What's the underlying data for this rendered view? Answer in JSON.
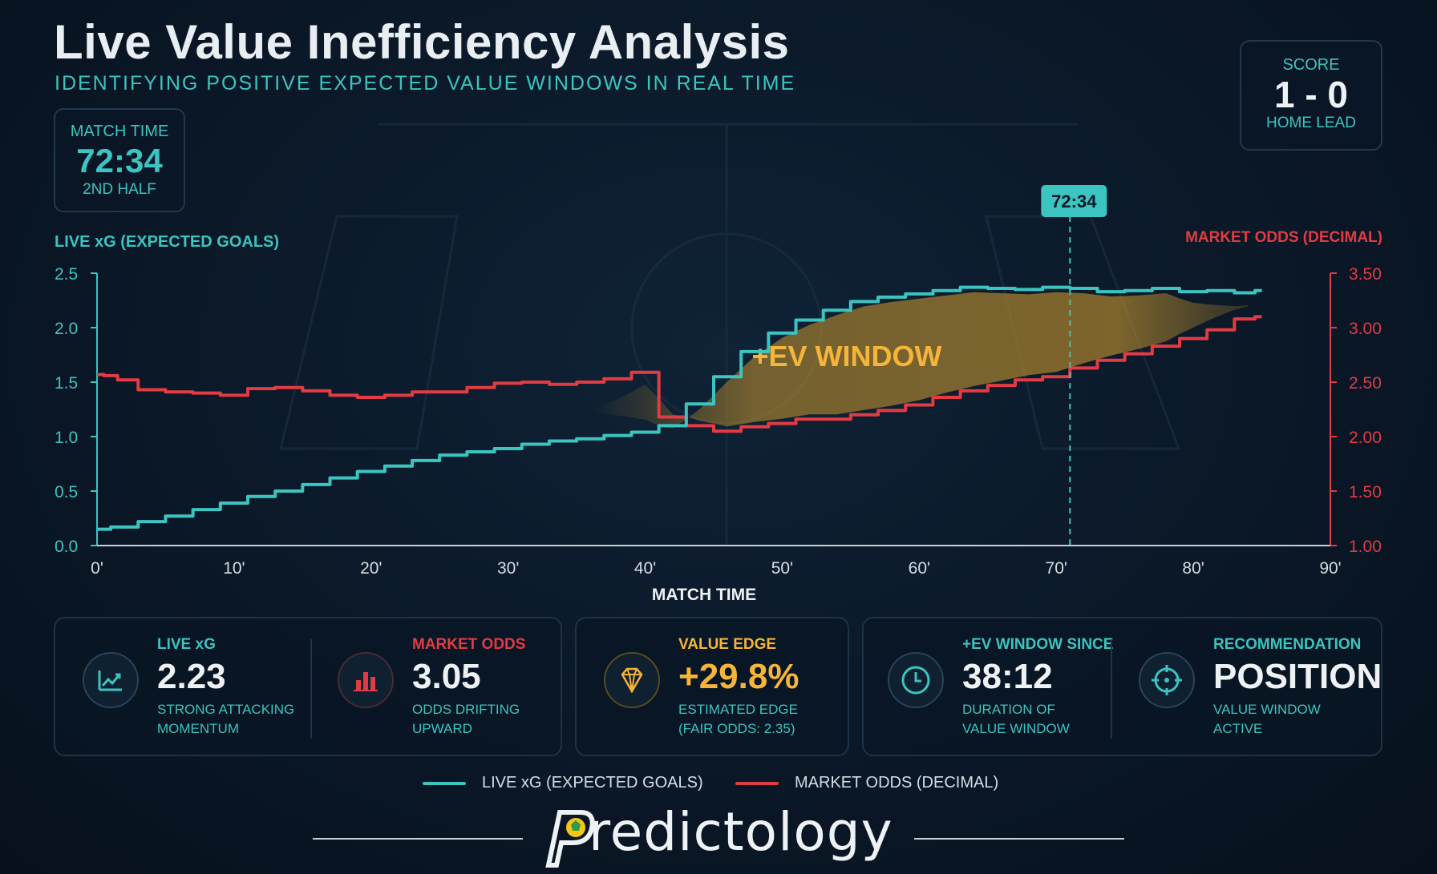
{
  "header": {
    "title": "Live Value Inefficiency Analysis",
    "subtitle": "IDENTIFYING POSITIVE EXPECTED VALUE WINDOWS IN REAL TIME"
  },
  "match_time": {
    "label": "MATCH TIME",
    "value": "72:34",
    "period": "2ND HALF"
  },
  "score": {
    "label": "SCORE",
    "value": "1 - 0",
    "status": "HOME LEAD"
  },
  "chart_data": {
    "type": "line",
    "xlabel": "MATCH TIME",
    "ylabel_left": "LIVE xG (EXPECTED GOALS)",
    "ylabel_right": "MARKET ODDS (DECIMAL)",
    "xlim": [
      0,
      90
    ],
    "ylim_left": [
      0,
      2.5
    ],
    "ylim_right": [
      1.0,
      3.5
    ],
    "x_ticks": [
      "0'",
      "10'",
      "20'",
      "30'",
      "40'",
      "50'",
      "60'",
      "70'",
      "80'",
      "90'"
    ],
    "y_ticks_left": [
      "0.0",
      "0.5",
      "1.0",
      "1.5",
      "2.0",
      "2.5"
    ],
    "y_ticks_right": [
      "1.00",
      "1.50",
      "2.00",
      "2.50",
      "3.00",
      "3.50"
    ],
    "current_marker": {
      "x": 71,
      "label": "72:34"
    },
    "ev_window": {
      "label": "+EV WINDOW",
      "x_start": 36,
      "x_end": 84
    },
    "grid": false,
    "series": [
      {
        "name": "LIVE xG (EXPECTED GOALS)",
        "axis": "left",
        "color": "#3cc4c0",
        "x": [
          0,
          2,
          4,
          6,
          8,
          10,
          12,
          14,
          16,
          18,
          20,
          22,
          24,
          26,
          28,
          30,
          32,
          34,
          36,
          38,
          40,
          42,
          44,
          46,
          48,
          50,
          52,
          54,
          56,
          58,
          60,
          62,
          64,
          66,
          68,
          70,
          72,
          74,
          76,
          78,
          80,
          82,
          84,
          85
        ],
        "values": [
          0.15,
          0.17,
          0.22,
          0.27,
          0.33,
          0.39,
          0.45,
          0.5,
          0.56,
          0.62,
          0.68,
          0.73,
          0.78,
          0.83,
          0.86,
          0.89,
          0.93,
          0.96,
          0.98,
          1.01,
          1.04,
          1.1,
          1.3,
          1.55,
          1.78,
          1.95,
          2.07,
          2.16,
          2.24,
          2.28,
          2.31,
          2.34,
          2.37,
          2.36,
          2.35,
          2.37,
          2.36,
          2.33,
          2.34,
          2.36,
          2.33,
          2.34,
          2.32,
          2.34
        ]
      },
      {
        "name": "MARKET ODDS (DECIMAL)",
        "axis": "right",
        "color": "#e23b43",
        "x": [
          0,
          1,
          2,
          4,
          6,
          8,
          10,
          12,
          14,
          16,
          18,
          20,
          22,
          24,
          26,
          28,
          30,
          32,
          34,
          36,
          38,
          40,
          42,
          44,
          46,
          48,
          50,
          52,
          54,
          56,
          58,
          60,
          62,
          64,
          66,
          68,
          70,
          72,
          74,
          76,
          78,
          80,
          82,
          84,
          85
        ],
        "values": [
          2.57,
          2.56,
          2.52,
          2.43,
          2.41,
          2.4,
          2.38,
          2.44,
          2.45,
          2.42,
          2.38,
          2.36,
          2.38,
          2.41,
          2.41,
          2.45,
          2.49,
          2.5,
          2.48,
          2.5,
          2.53,
          2.59,
          2.18,
          2.1,
          2.05,
          2.09,
          2.12,
          2.16,
          2.16,
          2.2,
          2.24,
          2.29,
          2.36,
          2.42,
          2.47,
          2.52,
          2.55,
          2.63,
          2.7,
          2.76,
          2.83,
          2.9,
          2.98,
          3.08,
          3.1
        ]
      }
    ]
  },
  "stats": {
    "live_xg": {
      "label": "LIVE xG",
      "value": "2.23",
      "sub1": "STRONG ATTACKING",
      "sub2": "MOMENTUM",
      "icon": "trend-chart-icon"
    },
    "market_odds": {
      "label": "MARKET ODDS",
      "value": "3.05",
      "sub1": "ODDS DRIFTING",
      "sub2": "UPWARD",
      "icon": "bar-chart-icon"
    },
    "value_edge": {
      "label": "VALUE EDGE",
      "value": "+29.8%",
      "sub1": "ESTIMATED EDGE",
      "sub2": "(FAIR ODDS: 2.35)",
      "icon": "diamond-icon"
    },
    "window_since": {
      "label": "+EV WINDOW SINCE",
      "value": "38:12",
      "sub1": "DURATION OF",
      "sub2": "VALUE WINDOW",
      "icon": "clock-icon"
    },
    "recommendation": {
      "label": "RECOMMENDATION",
      "value": "POSITION",
      "sub1": "VALUE WINDOW",
      "sub2": "ACTIVE",
      "icon": "crosshair-icon"
    }
  },
  "legend": {
    "xg": "LIVE xG (EXPECTED GOALS)",
    "odds": "MARKET ODDS (DECIMAL)"
  },
  "brand": {
    "name": "redictology",
    "logo_letter": "P"
  },
  "colors": {
    "teal": "#3cc4c0",
    "red": "#e23b43",
    "gold": "#f5b53a",
    "text": "#e9eef2"
  }
}
